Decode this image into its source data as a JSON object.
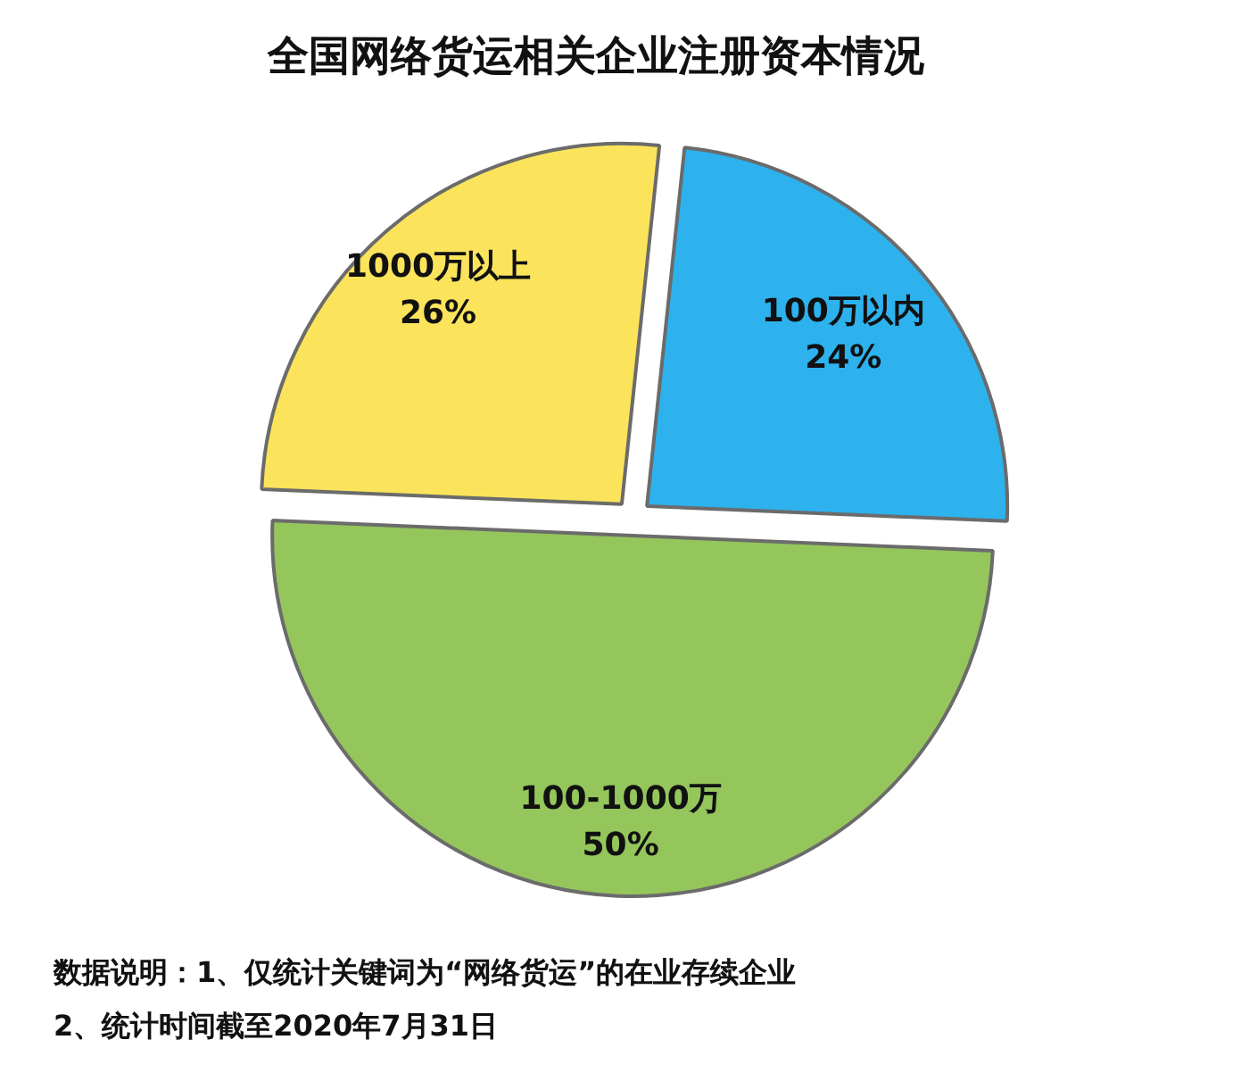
{
  "chart_data": {
    "type": "pie",
    "title": "全国网络货运相关企业注册资本情况",
    "categories": [
      "100万以内",
      "100-1000万",
      "1000万以上"
    ],
    "values": [
      24,
      50,
      26
    ],
    "colors": [
      "#2db2ee",
      "#94c65c",
      "#fbe45b"
    ],
    "value_labels": [
      "24%",
      "50%",
      "26%"
    ],
    "annotations": [
      "数据说明：1、仅统计关键词为“网络货运”的在业存续企业",
      "2、统计时间截至2020年7月31日"
    ]
  }
}
